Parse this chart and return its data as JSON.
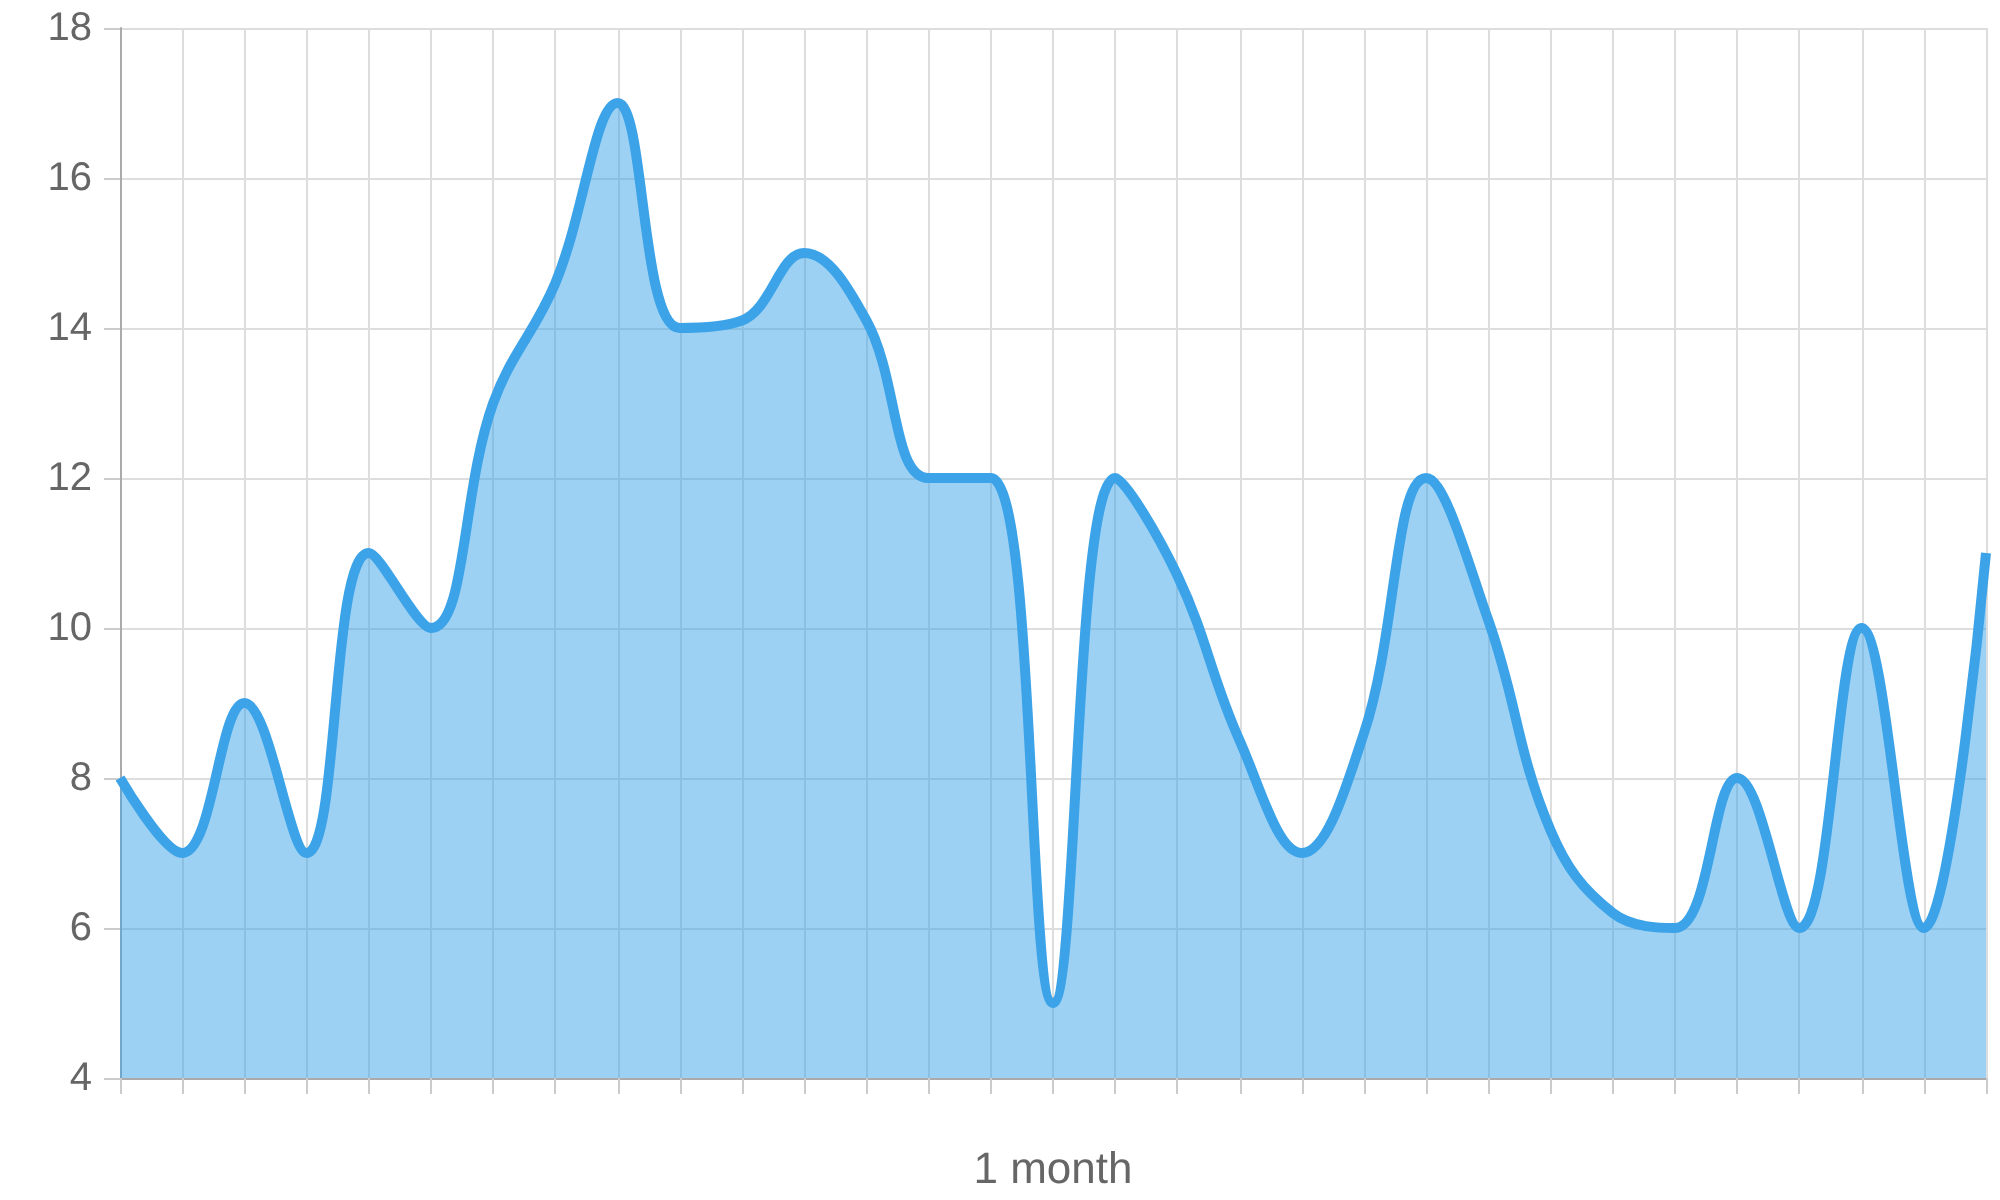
{
  "chart_data": {
    "type": "area",
    "xlabel": "1 month",
    "categories": [
      null,
      null,
      null,
      null,
      null,
      null,
      null,
      null,
      null,
      null,
      null,
      null,
      null,
      null,
      null,
      null,
      null,
      null,
      null,
      null,
      null,
      null,
      null,
      null,
      null,
      null,
      null,
      null,
      null,
      null,
      null
    ],
    "series": [
      {
        "color": "#3ca3e8",
        "values": [
          8,
          7,
          9,
          7,
          11,
          10,
          13,
          14.6,
          17,
          14,
          14.1,
          15,
          14.1,
          12,
          12,
          5,
          12,
          10.7,
          8.5,
          7,
          8.6,
          12,
          10.1,
          7.3,
          6.2,
          6,
          8,
          6,
          10,
          6,
          11
        ]
      }
    ],
    "ylim": [
      4,
      18
    ],
    "yticks": [
      4,
      6,
      8,
      10,
      12,
      14,
      16,
      18
    ],
    "grid": true,
    "tick_labels": "y",
    "marker": "none"
  }
}
